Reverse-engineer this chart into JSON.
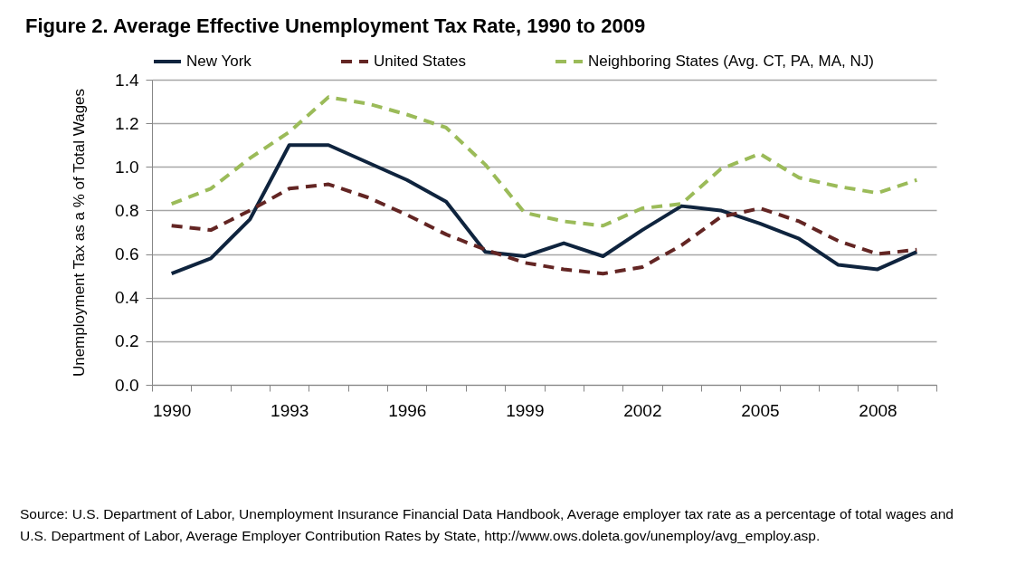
{
  "chart_data": {
    "type": "line",
    "title": "Figure 2. Average Effective Unemployment Tax Rate, 1990 to 2009",
    "ylabel": "Unemployment Tax as a % of Total Wages",
    "categories": [
      "1990",
      null,
      null,
      "1993",
      null,
      null,
      "1996",
      null,
      null,
      "1999",
      null,
      null,
      "2002",
      null,
      null,
      "2005",
      null,
      null,
      "2008",
      null
    ],
    "series": [
      {
        "name": "New York",
        "color": "#0f243e",
        "line_style": "solid",
        "values": [
          0.51,
          0.58,
          0.76,
          1.1,
          1.1,
          1.02,
          0.94,
          0.84,
          0.61,
          0.59,
          0.65,
          0.59,
          0.71,
          0.82,
          0.8,
          0.74,
          0.67,
          0.55,
          0.53,
          0.61
        ]
      },
      {
        "name": "United States",
        "color": "#632523",
        "line_style": "dashed",
        "values": [
          0.73,
          0.71,
          0.8,
          0.9,
          0.92,
          0.86,
          0.78,
          0.69,
          0.62,
          0.56,
          0.53,
          0.51,
          0.54,
          0.64,
          0.77,
          0.81,
          0.75,
          0.66,
          0.6,
          0.62
        ]
      },
      {
        "name": "Neighboring States (Avg. CT, PA, MA, NJ)",
        "color": "#9bbb59",
        "line_style": "dashed",
        "values": [
          0.83,
          0.9,
          1.04,
          1.16,
          1.32,
          1.29,
          1.24,
          1.18,
          1.01,
          0.79,
          0.75,
          0.73,
          0.81,
          0.83,
          0.99,
          1.06,
          0.95,
          0.91,
          0.88,
          0.94
        ]
      }
    ],
    "ylim": [
      0,
      1.4
    ],
    "yticks": [
      {
        "value": 0,
        "label": "0.0"
      },
      {
        "value": 0.2,
        "label": "0.2"
      },
      {
        "value": 0.4,
        "label": "0.4"
      },
      {
        "value": 0.6,
        "label": "0.6"
      },
      {
        "value": 0.8,
        "label": "0.8"
      },
      {
        "value": 1.0,
        "label": "1.0"
      },
      {
        "value": 1.2,
        "label": "1.2"
      },
      {
        "value": 1.4,
        "label": "1.4"
      }
    ],
    "grid": "y",
    "legend": "top",
    "annotations": [
      "Source:  U.S. Department of Labor, Unemployment Insurance Financial Data Handbook, Average employer tax rate as a percentage of total wages and U.S. Department of Labor, Average Employer Contribution Rates by State, http://www.ows.doleta.gov/unemploy/avg_employ.asp."
    ]
  }
}
